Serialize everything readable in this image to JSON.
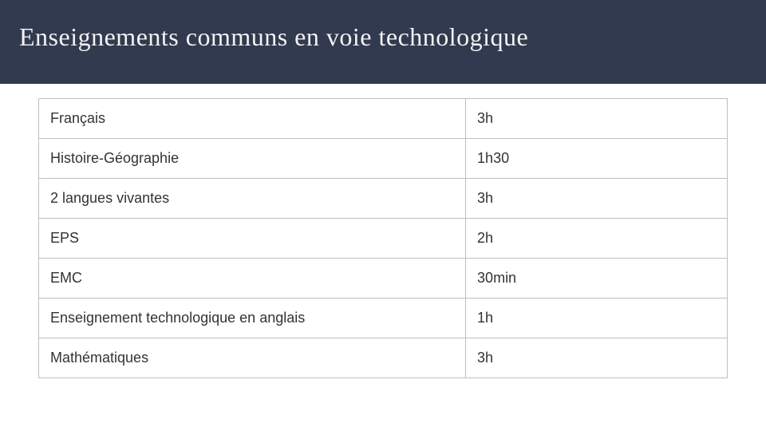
{
  "header": {
    "title": "Enseignements communs en voie technologique",
    "background_color": "#323a4f",
    "text_color": "#f2f2f2"
  },
  "table": {
    "border_color": "#bfbfbf",
    "text_color": "#333333",
    "rows": [
      {
        "subject": "Français",
        "hours": "3h"
      },
      {
        "subject": "Histoire-Géographie",
        "hours": "1h30"
      },
      {
        "subject": "2 langues vivantes",
        "hours": "3h"
      },
      {
        "subject": "EPS",
        "hours": "2h"
      },
      {
        "subject": "EMC",
        "hours": "30min"
      },
      {
        "subject": "Enseignement technologique en anglais",
        "hours": "1h"
      },
      {
        "subject": "Mathématiques",
        "hours": "3h"
      }
    ]
  }
}
